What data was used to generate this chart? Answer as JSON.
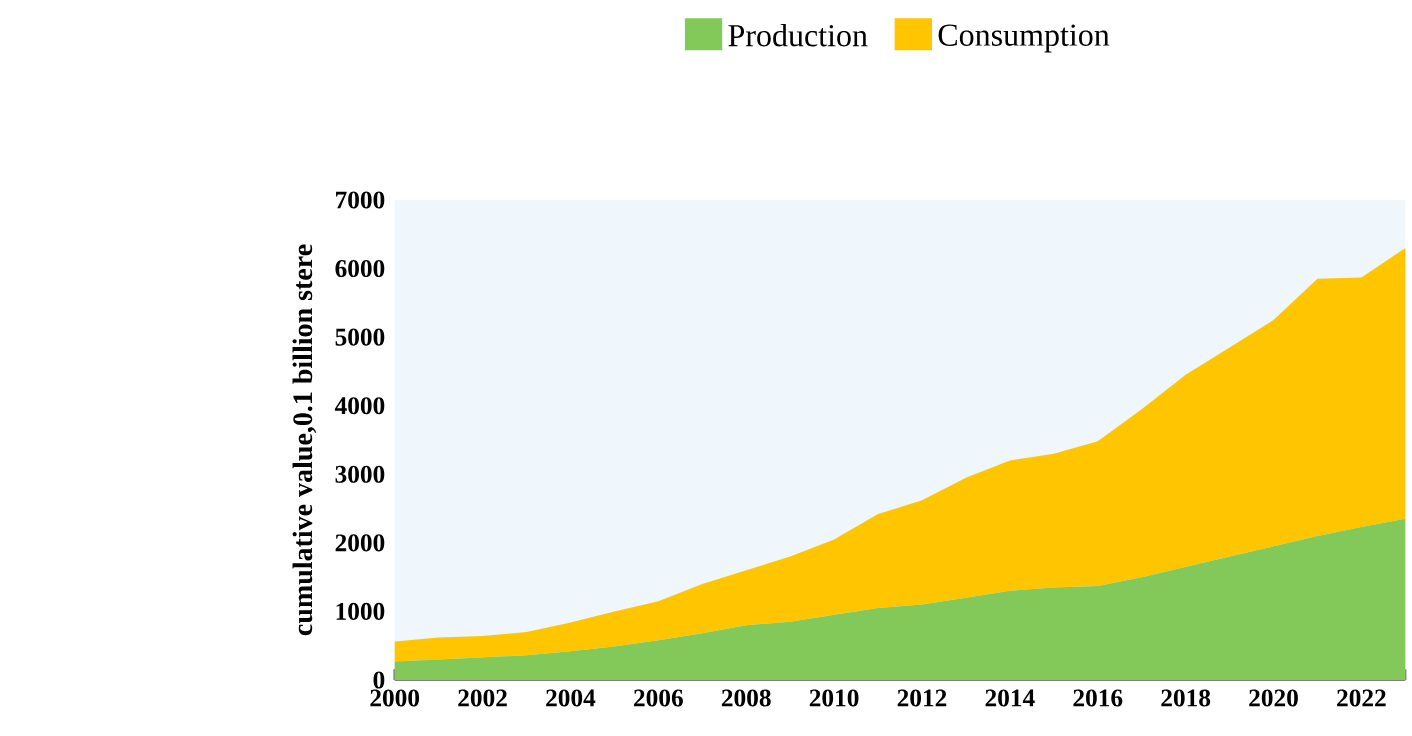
{
  "chart_data": {
    "type": "area",
    "stacked": true,
    "ylabel": "cumulative value,0.1 billion stere",
    "x": [
      2000,
      2001,
      2002,
      2003,
      2004,
      2005,
      2006,
      2007,
      2008,
      2009,
      2010,
      2011,
      2012,
      2013,
      2014,
      2015,
      2016,
      2017,
      2018,
      2019,
      2020,
      2021,
      2022,
      2023
    ],
    "series": [
      {
        "name": "Production",
        "color": "#82c95a",
        "values": [
          270,
          300,
          330,
          360,
          420,
          490,
          580,
          680,
          800,
          850,
          950,
          1050,
          1100,
          1200,
          1300,
          1350,
          1370,
          1500,
          1650,
          1800,
          1950,
          2100,
          2230,
          2350
        ]
      },
      {
        "name": "Consumption",
        "color": "#ffc600",
        "values": [
          290,
          320,
          310,
          340,
          420,
          510,
          570,
          720,
          800,
          950,
          1100,
          1370,
          1520,
          1750,
          1900,
          1950,
          2110,
          2450,
          2800,
          3050,
          3300,
          3750,
          3640,
          3950
        ]
      }
    ],
    "xlim": [
      2000,
      2023
    ],
    "xticks": [
      2000,
      2002,
      2004,
      2006,
      2008,
      2010,
      2012,
      2014,
      2016,
      2018,
      2020,
      2022
    ],
    "ylim": [
      0,
      7000
    ],
    "yticks": [
      0,
      1000,
      2000,
      3000,
      4000,
      5000,
      6000,
      7000
    ],
    "grid": false,
    "legend": "top"
  }
}
